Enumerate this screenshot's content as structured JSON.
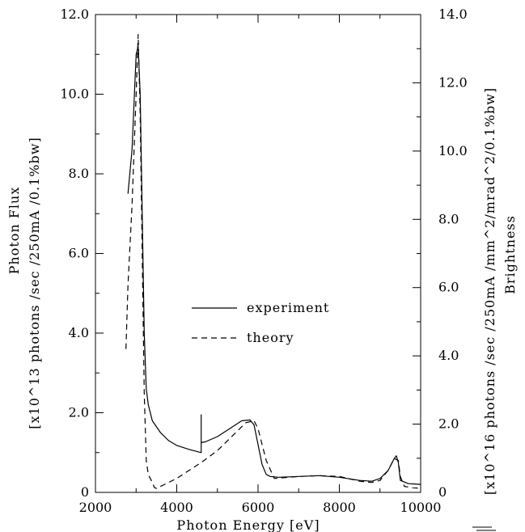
{
  "chart_data": {
    "type": "line",
    "xlabel": "Photon Energy [eV]",
    "ylabel_left": [
      "Photon Flux",
      "[x10^13 photons /sec /250mA /0.1%bw]"
    ],
    "ylabel_right": [
      "Brightness",
      "[x10^16 photons /sec /250mA /mm^2/mrad^2/0.1%bw]"
    ],
    "xlim": [
      2000,
      10000
    ],
    "ylim_left": [
      0,
      12
    ],
    "ylim_right": [
      0,
      14
    ],
    "x_ticks": [
      "2000",
      "4000",
      "6000",
      "8000",
      "10000"
    ],
    "y_ticks_left": [
      "0",
      "2.0",
      "4.0",
      "6.0",
      "8.0",
      "10.0",
      "12.0"
    ],
    "y_ticks_right": [
      "0",
      "2.0",
      "4.0",
      "6.0",
      "8.0",
      "10.0",
      "12.0",
      "14.0"
    ],
    "legend_position": "center",
    "series": [
      {
        "name": "experiment",
        "style": "solid",
        "x": [
          2800,
          2900,
          3000,
          3050,
          3100,
          3150,
          3200,
          3250,
          3300,
          3400,
          3600,
          3800,
          4000,
          4300,
          4600,
          4600,
          4600,
          4700,
          5000,
          5300,
          5600,
          5800,
          5900,
          6000,
          6100,
          6200,
          6300,
          6500,
          7000,
          7500,
          8000,
          8500,
          8800,
          9000,
          9200,
          9300,
          9350,
          9400,
          9450,
          9500,
          9700,
          10000
        ],
        "y": [
          7.5,
          8.6,
          11.0,
          11.2,
          10.0,
          7.0,
          4.0,
          2.6,
          2.2,
          1.8,
          1.5,
          1.3,
          1.18,
          1.08,
          1.0,
          1.95,
          1.25,
          1.27,
          1.4,
          1.6,
          1.8,
          1.82,
          1.7,
          1.2,
          0.7,
          0.45,
          0.4,
          0.38,
          0.4,
          0.42,
          0.38,
          0.3,
          0.28,
          0.35,
          0.55,
          0.75,
          0.85,
          0.92,
          0.75,
          0.3,
          0.22,
          0.2
        ]
      },
      {
        "name": "theory",
        "style": "dashed",
        "x": [
          2750,
          2800,
          2900,
          3000,
          3050,
          3100,
          3150,
          3200,
          3250,
          3300,
          3350,
          3400,
          3450,
          3500,
          3700,
          4000,
          4300,
          4600,
          5000,
          5400,
          5700,
          5900,
          6000,
          6200,
          6400,
          7000,
          7500,
          8000,
          8500,
          8800,
          9000,
          9200,
          9350,
          9450,
          9500,
          9600,
          9800,
          10000
        ],
        "y": [
          3.6,
          5.2,
          7.2,
          10.0,
          11.5,
          9.5,
          6.0,
          2.5,
          0.8,
          0.45,
          0.35,
          0.25,
          0.12,
          0.1,
          0.2,
          0.35,
          0.55,
          0.75,
          1.05,
          1.45,
          1.75,
          1.8,
          1.6,
          0.8,
          0.35,
          0.4,
          0.42,
          0.4,
          0.28,
          0.25,
          0.3,
          0.55,
          0.85,
          0.8,
          0.4,
          0.15,
          0.12,
          0.1
        ]
      }
    ]
  }
}
